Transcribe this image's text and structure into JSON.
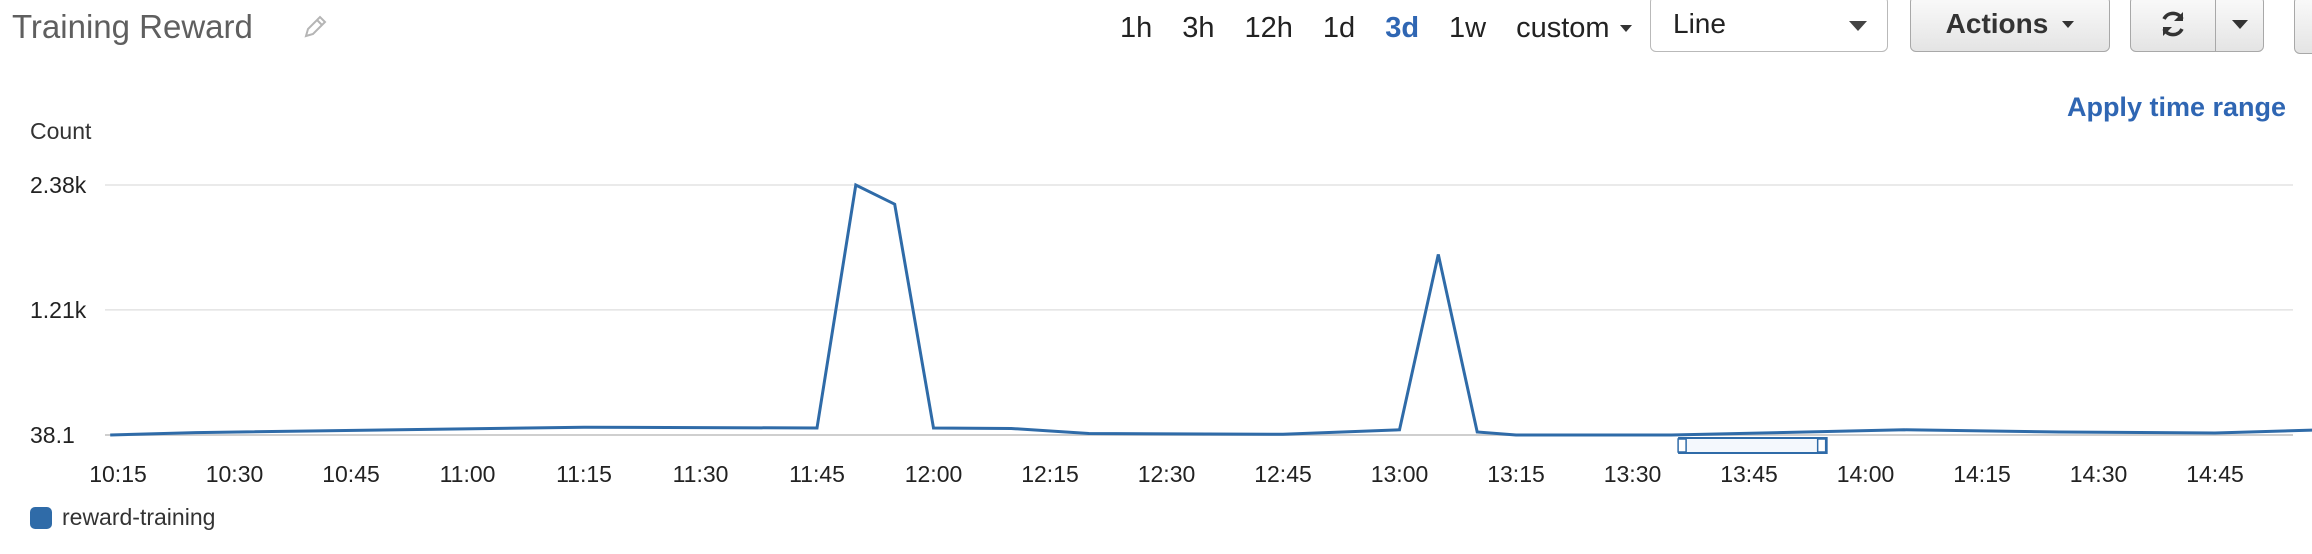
{
  "header": {
    "title": "Training Reward",
    "time_ranges": [
      "1h",
      "3h",
      "12h",
      "1d",
      "3d",
      "1w"
    ],
    "active_range": "3d",
    "custom_label": "custom",
    "view_select_value": "Line",
    "actions_label": "Actions",
    "apply_label": "Apply time range"
  },
  "colors": {
    "accent": "#2f66b3",
    "series": "#2f6ba8",
    "grid": "#e3e3e3"
  },
  "icons": {
    "edit": "pencil-icon",
    "refresh": "refresh-icon",
    "dropdown": "caret-down-icon"
  },
  "chart_data": {
    "type": "line",
    "title": "",
    "ylabel": "Count",
    "xlabel": "",
    "y_ticks": [
      "2.38k",
      "1.21k",
      "38.1"
    ],
    "y_tick_values": [
      2380,
      1210,
      38.1
    ],
    "ylim": [
      38.1,
      2380
    ],
    "x_ticks": [
      "10:15",
      "10:30",
      "10:45",
      "11:00",
      "11:15",
      "11:30",
      "11:45",
      "12:00",
      "12:15",
      "12:30",
      "12:45",
      "13:00",
      "13:15",
      "13:30",
      "13:45",
      "14:00",
      "14:15",
      "14:30",
      "14:45"
    ],
    "xlim": [
      "10:15",
      "14:59"
    ],
    "grid": "horizontal",
    "legend_position": "bottom-left",
    "series": [
      {
        "name": "reward-training",
        "points": [
          [
            "10:14",
            38.1
          ],
          [
            "10:25",
            61
          ],
          [
            "11:15",
            111
          ],
          [
            "11:45",
            104
          ],
          [
            "11:50",
            2380
          ],
          [
            "11:55",
            2200
          ],
          [
            "12:00",
            104
          ],
          [
            "12:10",
            99
          ],
          [
            "12:20",
            52
          ],
          [
            "12:45",
            45
          ],
          [
            "13:00",
            87
          ],
          [
            "13:05",
            1730
          ],
          [
            "13:10",
            66
          ],
          [
            "13:15",
            38.1
          ],
          [
            "13:35",
            38.1
          ],
          [
            "14:05",
            87
          ],
          [
            "14:25",
            66
          ],
          [
            "14:45",
            57
          ],
          [
            "14:59",
            87
          ]
        ]
      }
    ],
    "range_selector": [
      "13:36",
      "13:55"
    ]
  }
}
